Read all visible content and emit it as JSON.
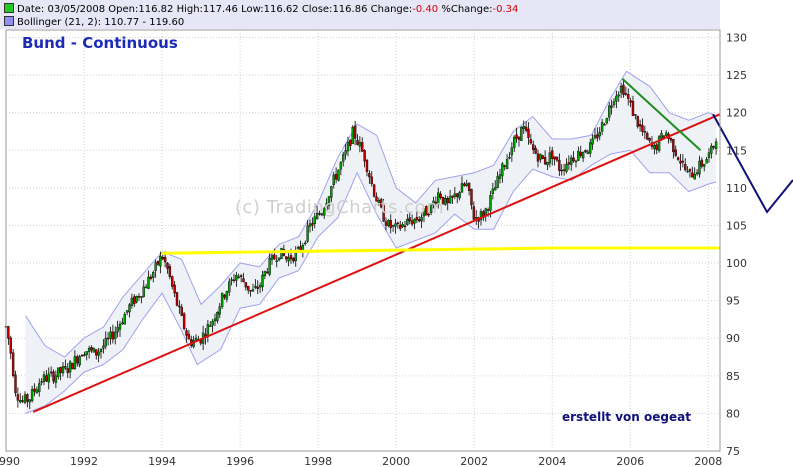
{
  "header": {
    "date_label": "Date:",
    "date": "03/05/2008",
    "open_label": "Open:",
    "open": "116.82",
    "high_label": "High:",
    "high": "117.46",
    "low_label": "Low:",
    "low": "116.62",
    "close_label": "Close:",
    "close": "116.86",
    "change_label": "Change:",
    "change": "-0.40",
    "pct_label": "%Change:",
    "pct": "-0.34",
    "bollinger_label": "Bollinger (21, 2):",
    "bollinger_values": "110.77 - 119.60",
    "price_box_color": "#22cc22",
    "bollinger_box_color": "#8f8ff0"
  },
  "title": "Bund - Continuous",
  "annotation": "erstellt von oegeat",
  "watermark": "(c) TradingCharts.com",
  "chart_data": {
    "type": "candlestick",
    "x_axis": {
      "range": [
        1990.0,
        2008.3
      ],
      "ticks": [
        "1990",
        "1992",
        "1994",
        "1996",
        "1998",
        "2000",
        "2002",
        "2004",
        "2006",
        "2008"
      ]
    },
    "y_axis": {
      "range": [
        75,
        131
      ],
      "ticks": [
        75,
        80,
        85,
        90,
        95,
        100,
        105,
        110,
        115,
        120,
        125,
        130
      ],
      "position": "right"
    },
    "grid": true,
    "colors": {
      "up": "#00a000",
      "down": "#c00000",
      "bollinger_line": "#a0a0f0",
      "bollinger_fill": "#eef1f6",
      "grid": "#d0d0d0"
    },
    "close_path": [
      [
        1990.0,
        91.5
      ],
      [
        1990.1,
        89.0
      ],
      [
        1990.25,
        83.0
      ],
      [
        1990.4,
        81.5
      ],
      [
        1990.6,
        82.0
      ],
      [
        1990.9,
        84.5
      ],
      [
        1991.2,
        85.0
      ],
      [
        1991.6,
        86.0
      ],
      [
        1992.0,
        88.5
      ],
      [
        1992.3,
        88.0
      ],
      [
        1992.6,
        89.5
      ],
      [
        1992.8,
        91.0
      ],
      [
        1993.2,
        94.5
      ],
      [
        1993.5,
        96.5
      ],
      [
        1993.8,
        99.0
      ],
      [
        1994.0,
        101.0
      ],
      [
        1994.15,
        99.0
      ],
      [
        1994.3,
        96.0
      ],
      [
        1994.5,
        92.5
      ],
      [
        1994.7,
        89.5
      ],
      [
        1995.0,
        90.0
      ],
      [
        1995.3,
        92.5
      ],
      [
        1995.6,
        96.0
      ],
      [
        1995.9,
        98.5
      ],
      [
        1996.1,
        97.5
      ],
      [
        1996.3,
        96.0
      ],
      [
        1996.5,
        97.0
      ],
      [
        1996.7,
        99.5
      ],
      [
        1997.0,
        101.5
      ],
      [
        1997.2,
        100.5
      ],
      [
        1997.5,
        101.5
      ],
      [
        1997.8,
        105.0
      ],
      [
        1998.1,
        107.0
      ],
      [
        1998.4,
        111.0
      ],
      [
        1998.7,
        114.5
      ],
      [
        1998.9,
        117.5
      ],
      [
        1999.2,
        114.0
      ],
      [
        1999.4,
        110.0
      ],
      [
        1999.6,
        107.0
      ],
      [
        1999.8,
        105.0
      ],
      [
        2000.0,
        104.5
      ],
      [
        2000.3,
        105.5
      ],
      [
        2000.6,
        106.0
      ],
      [
        2000.9,
        107.5
      ],
      [
        2001.1,
        109.5
      ],
      [
        2001.3,
        107.5
      ],
      [
        2001.6,
        109.5
      ],
      [
        2001.8,
        110.5
      ],
      [
        2002.0,
        106.0
      ],
      [
        2002.25,
        106.5
      ],
      [
        2002.5,
        109.5
      ],
      [
        2002.8,
        113.5
      ],
      [
        2003.0,
        116.0
      ],
      [
        2003.25,
        118.0
      ],
      [
        2003.5,
        115.0
      ],
      [
        2003.8,
        113.5
      ],
      [
        2004.0,
        114.5
      ],
      [
        2004.2,
        112.5
      ],
      [
        2004.5,
        114.0
      ],
      [
        2004.8,
        115.0
      ],
      [
        2005.0,
        115.5
      ],
      [
        2005.3,
        118.5
      ],
      [
        2005.6,
        122.5
      ],
      [
        2005.8,
        123.5
      ],
      [
        2006.0,
        121.0
      ],
      [
        2006.2,
        118.5
      ],
      [
        2006.4,
        116.5
      ],
      [
        2006.6,
        115.0
      ],
      [
        2006.9,
        117.5
      ],
      [
        2007.1,
        115.5
      ],
      [
        2007.3,
        113.5
      ],
      [
        2007.5,
        111.5
      ],
      [
        2007.7,
        112.5
      ],
      [
        2007.9,
        113.5
      ],
      [
        2008.1,
        115.0
      ],
      [
        2008.2,
        116.9
      ]
    ],
    "bollinger_upper": [
      [
        1990.5,
        93.0
      ],
      [
        1991.0,
        89.0
      ],
      [
        1991.5,
        87.5
      ],
      [
        1992.0,
        90.0
      ],
      [
        1992.5,
        91.5
      ],
      [
        1993.0,
        95.5
      ],
      [
        1993.5,
        98.5
      ],
      [
        1994.0,
        101.5
      ],
      [
        1994.5,
        100.5
      ],
      [
        1995.0,
        94.5
      ],
      [
        1995.5,
        97.0
      ],
      [
        1996.0,
        100.0
      ],
      [
        1996.5,
        99.5
      ],
      [
        1997.0,
        102.5
      ],
      [
        1997.5,
        103.5
      ],
      [
        1998.0,
        108.0
      ],
      [
        1998.5,
        114.0
      ],
      [
        1999.0,
        118.5
      ],
      [
        1999.5,
        117.0
      ],
      [
        2000.0,
        110.0
      ],
      [
        2000.5,
        108.0
      ],
      [
        2001.0,
        111.0
      ],
      [
        2001.5,
        111.5
      ],
      [
        2002.0,
        112.0
      ],
      [
        2002.5,
        113.0
      ],
      [
        2003.0,
        117.5
      ],
      [
        2003.5,
        119.5
      ],
      [
        2004.0,
        116.5
      ],
      [
        2004.5,
        116.5
      ],
      [
        2005.0,
        117.0
      ],
      [
        2005.5,
        122.0
      ],
      [
        2005.9,
        125.5
      ],
      [
        2006.5,
        123.5
      ],
      [
        2007.0,
        120.0
      ],
      [
        2007.5,
        119.0
      ],
      [
        2008.0,
        120.0
      ],
      [
        2008.2,
        119.6
      ]
    ],
    "bollinger_lower": [
      [
        1990.5,
        80.0
      ],
      [
        1991.0,
        81.0
      ],
      [
        1991.5,
        83.0
      ],
      [
        1992.0,
        85.5
      ],
      [
        1992.5,
        86.5
      ],
      [
        1993.0,
        88.5
      ],
      [
        1993.5,
        92.5
      ],
      [
        1994.0,
        96.0
      ],
      [
        1994.5,
        91.0
      ],
      [
        1994.9,
        86.5
      ],
      [
        1995.5,
        88.5
      ],
      [
        1996.0,
        94.0
      ],
      [
        1996.5,
        94.5
      ],
      [
        1997.0,
        98.0
      ],
      [
        1997.5,
        99.0
      ],
      [
        1998.0,
        103.5
      ],
      [
        1998.5,
        106.0
      ],
      [
        1999.0,
        112.0
      ],
      [
        1999.5,
        106.5
      ],
      [
        2000.0,
        102.0
      ],
      [
        2000.5,
        103.0
      ],
      [
        2001.0,
        104.0
      ],
      [
        2001.5,
        106.5
      ],
      [
        2002.0,
        104.5
      ],
      [
        2002.5,
        104.5
      ],
      [
        2003.0,
        109.5
      ],
      [
        2003.5,
        112.5
      ],
      [
        2004.0,
        111.5
      ],
      [
        2004.5,
        111.0
      ],
      [
        2005.0,
        113.0
      ],
      [
        2005.5,
        114.5
      ],
      [
        2006.0,
        115.0
      ],
      [
        2006.5,
        112.0
      ],
      [
        2007.0,
        112.0
      ],
      [
        2007.5,
        109.5
      ],
      [
        2008.0,
        110.5
      ],
      [
        2008.2,
        110.8
      ]
    ],
    "drawn_lines": [
      {
        "name": "support-trendline",
        "color": "#dd1111",
        "points": [
          [
            1990.7,
            80.2
          ],
          [
            2008.3,
            119.8
          ]
        ]
      },
      {
        "name": "horizontal-line",
        "color": "#ffff00",
        "points": [
          [
            1994.0,
            101.3
          ],
          [
            2004.0,
            102.0
          ],
          [
            2008.3,
            102.0
          ]
        ]
      },
      {
        "name": "downtrend-line",
        "color": "#1e8c1e",
        "points": [
          [
            2005.8,
            124.5
          ],
          [
            2007.8,
            115.0
          ]
        ]
      },
      {
        "name": "forecast-arrow",
        "color": "#10107a",
        "points": [
          [
            2008.12,
            119.8
          ],
          [
            2008.36,
            120.8
          ]
        ]
      }
    ]
  }
}
